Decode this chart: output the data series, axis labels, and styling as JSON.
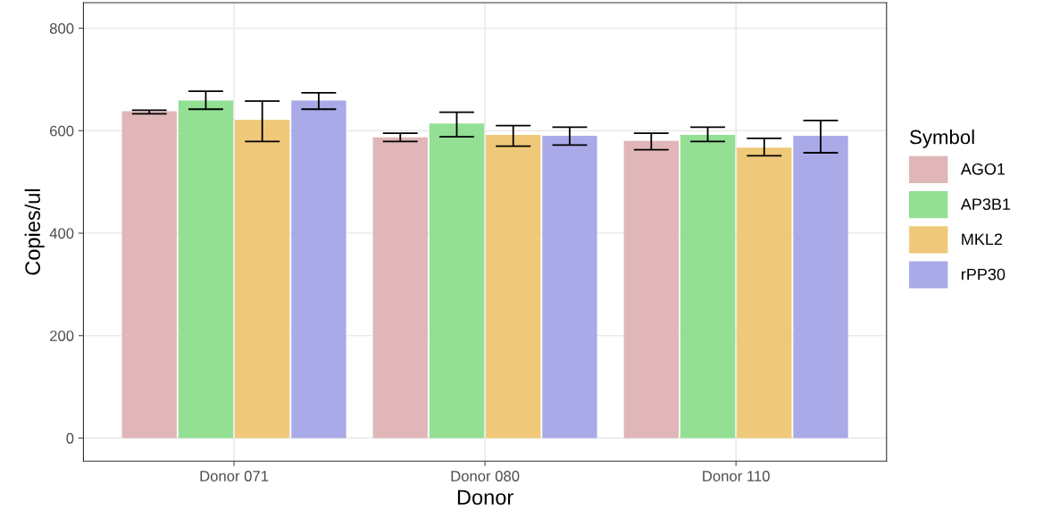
{
  "chart_data": {
    "type": "bar",
    "xlabel": "Donor",
    "ylabel": "Copies/ul",
    "legend_title": "Symbol",
    "categories": [
      "Donor 071",
      "Donor 080",
      "Donor 110"
    ],
    "series": [
      {
        "name": "AGO1",
        "color": "#e0b6b8",
        "values": [
          638,
          587,
          580
        ],
        "errors": [
          [
            633,
            640
          ],
          [
            579,
            595
          ],
          [
            563,
            595
          ]
        ]
      },
      {
        "name": "AP3B1",
        "color": "#93e095",
        "values": [
          659,
          614,
          592
        ],
        "errors": [
          [
            642,
            677
          ],
          [
            588,
            636
          ],
          [
            579,
            607
          ]
        ]
      },
      {
        "name": "MKL2",
        "color": "#efc979",
        "values": [
          621,
          592,
          567
        ],
        "errors": [
          [
            579,
            658
          ],
          [
            570,
            610
          ],
          [
            551,
            585
          ]
        ]
      },
      {
        "name": "rPP30",
        "color": "#aaaae8",
        "values": [
          659,
          590,
          590
        ],
        "errors": [
          [
            642,
            674
          ],
          [
            572,
            607
          ],
          [
            557,
            620
          ]
        ]
      }
    ],
    "ylim": [
      -45,
      850
    ],
    "yticks": [
      0,
      200,
      400,
      600,
      800
    ],
    "grid": true,
    "legend": "right"
  }
}
